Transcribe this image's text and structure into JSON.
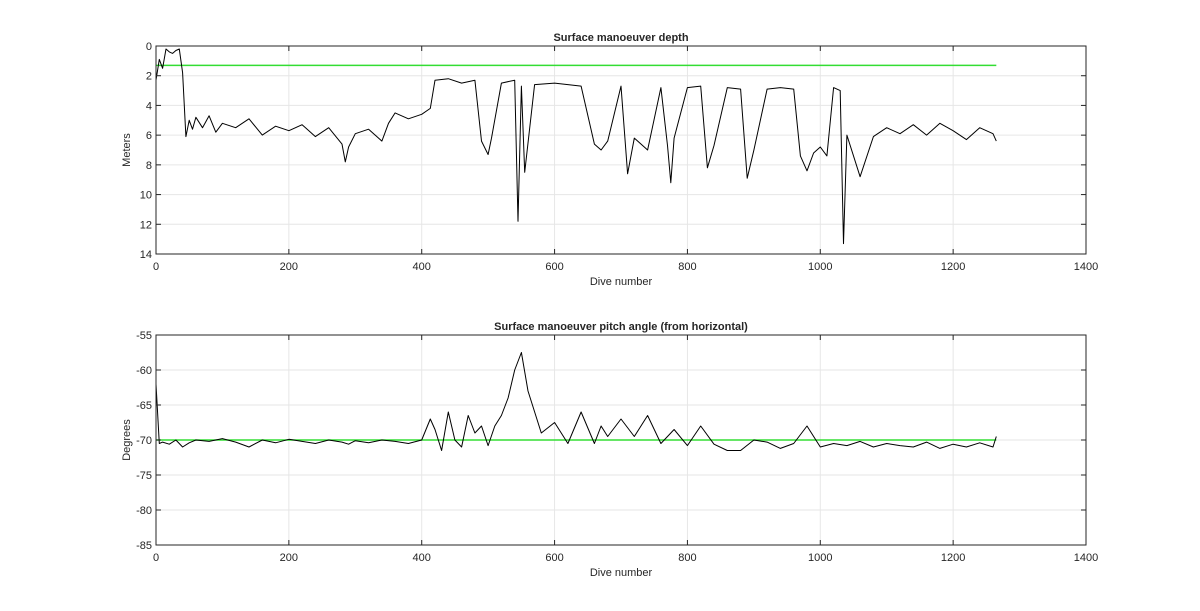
{
  "colors": {
    "series": "#000000",
    "threshold": "#33dd33",
    "grid": "#e6e6e6",
    "axis": "#262626",
    "background": "#ffffff"
  },
  "chart_data": [
    {
      "type": "line",
      "title": "Surface manoeuver depth",
      "xlabel": "Dive number",
      "ylabel": "Meters",
      "xlim": [
        0,
        1400
      ],
      "ylim": [
        0,
        14
      ],
      "y_reversed": true,
      "grid": true,
      "xticks": [
        0,
        200,
        400,
        600,
        800,
        1000,
        1200,
        1400
      ],
      "yticks": [
        0,
        2,
        4,
        6,
        8,
        10,
        12,
        14
      ],
      "xtick_labels": [
        "0",
        "200",
        "400",
        "600",
        "800",
        "1000",
        "1200",
        "1400"
      ],
      "ytick_labels": [
        "0",
        "2",
        "4",
        "6",
        "8",
        "10",
        "12",
        "14"
      ],
      "threshold": {
        "y": 1.3,
        "x_start": 0,
        "x_end": 1265
      },
      "series": [
        {
          "x": [
            0,
            5,
            10,
            15,
            20,
            25,
            30,
            35,
            40,
            45,
            50,
            55,
            60,
            70,
            80,
            90,
            100,
            120,
            140,
            160,
            180,
            200,
            220,
            240,
            260,
            280,
            285,
            290,
            300,
            320,
            340,
            350,
            360,
            380,
            400,
            413,
            420,
            440,
            460,
            480,
            490,
            500,
            505,
            520,
            540,
            545,
            550,
            555,
            570,
            600,
            620,
            640,
            660,
            670,
            680,
            700,
            710,
            720,
            740,
            760,
            770,
            775,
            780,
            800,
            820,
            830,
            840,
            860,
            880,
            890,
            900,
            920,
            940,
            960,
            970,
            980,
            990,
            1000,
            1010,
            1020,
            1030,
            1035,
            1040,
            1060,
            1080,
            1100,
            1120,
            1140,
            1160,
            1180,
            1200,
            1220,
            1240,
            1260,
            1265
          ],
          "y": [
            2.3,
            0.9,
            1.5,
            0.2,
            0.4,
            0.5,
            0.3,
            0.2,
            1.8,
            6.1,
            5.0,
            5.6,
            4.8,
            5.5,
            4.7,
            5.8,
            5.2,
            5.5,
            4.9,
            6.0,
            5.4,
            5.7,
            5.3,
            6.1,
            5.5,
            6.6,
            7.8,
            6.8,
            5.9,
            5.6,
            6.4,
            5.2,
            4.5,
            4.9,
            4.6,
            4.2,
            2.3,
            2.2,
            2.5,
            2.3,
            6.4,
            7.3,
            6.2,
            2.5,
            2.3,
            11.8,
            2.7,
            8.5,
            2.6,
            2.5,
            2.6,
            2.7,
            6.6,
            7.0,
            6.4,
            2.7,
            8.6,
            6.2,
            7.0,
            2.8,
            6.7,
            9.2,
            6.2,
            2.8,
            2.7,
            8.2,
            6.7,
            2.8,
            2.9,
            8.9,
            7.0,
            2.9,
            2.8,
            2.9,
            7.4,
            8.4,
            7.2,
            6.8,
            7.4,
            2.8,
            3.0,
            13.3,
            6.0,
            8.8,
            6.1,
            5.5,
            5.9,
            5.3,
            6.0,
            5.2,
            5.7,
            6.3,
            5.5,
            5.9,
            6.4
          ]
        }
      ]
    },
    {
      "type": "line",
      "title": "Surface manoeuver pitch angle (from horizontal)",
      "xlabel": "Dive number",
      "ylabel": "Degrees",
      "xlim": [
        0,
        1400
      ],
      "ylim": [
        -85,
        -55
      ],
      "grid": true,
      "xticks": [
        0,
        200,
        400,
        600,
        800,
        1000,
        1200,
        1400
      ],
      "yticks": [
        -55,
        -60,
        -65,
        -70,
        -75,
        -80,
        -85
      ],
      "xtick_labels": [
        "0",
        "200",
        "400",
        "600",
        "800",
        "1000",
        "1200",
        "1400"
      ],
      "ytick_labels": [
        "-55",
        "-60",
        "-65",
        "-70",
        "-75",
        "-80",
        "-85"
      ],
      "threshold": {
        "y": -70,
        "x_start": 0,
        "x_end": 1265
      },
      "series": [
        {
          "x": [
            0,
            5,
            10,
            20,
            30,
            40,
            50,
            60,
            80,
            100,
            120,
            140,
            160,
            180,
            200,
            220,
            240,
            260,
            280,
            290,
            300,
            320,
            340,
            360,
            380,
            400,
            413,
            420,
            430,
            440,
            450,
            460,
            470,
            480,
            490,
            500,
            510,
            520,
            530,
            540,
            550,
            560,
            580,
            600,
            620,
            640,
            660,
            670,
            680,
            700,
            720,
            740,
            760,
            780,
            800,
            820,
            840,
            860,
            880,
            900,
            920,
            940,
            960,
            980,
            1000,
            1020,
            1040,
            1060,
            1080,
            1100,
            1120,
            1140,
            1160,
            1180,
            1200,
            1220,
            1240,
            1260,
            1265
          ],
          "y": [
            -62.0,
            -70.5,
            -70.3,
            -70.6,
            -70.0,
            -71.0,
            -70.4,
            -70.0,
            -70.2,
            -69.8,
            -70.3,
            -71.0,
            -70.0,
            -70.4,
            -69.9,
            -70.2,
            -70.5,
            -70.0,
            -70.3,
            -70.6,
            -70.1,
            -70.4,
            -70.0,
            -70.2,
            -70.5,
            -70.0,
            -67.0,
            -68.5,
            -71.5,
            -66.0,
            -70.0,
            -71.0,
            -66.5,
            -69.0,
            -68.0,
            -70.8,
            -68.0,
            -66.5,
            -64.0,
            -60.0,
            -57.5,
            -63.0,
            -69.0,
            -67.5,
            -70.5,
            -66.0,
            -70.5,
            -68.0,
            -69.5,
            -67.0,
            -69.5,
            -66.5,
            -70.5,
            -68.5,
            -70.8,
            -68.0,
            -70.6,
            -71.5,
            -71.5,
            -70.0,
            -70.3,
            -71.2,
            -70.5,
            -68.0,
            -71.0,
            -70.5,
            -70.8,
            -70.2,
            -71.0,
            -70.5,
            -70.8,
            -71.0,
            -70.3,
            -71.2,
            -70.6,
            -71.0,
            -70.4,
            -71.0,
            -69.5
          ]
        }
      ]
    }
  ]
}
